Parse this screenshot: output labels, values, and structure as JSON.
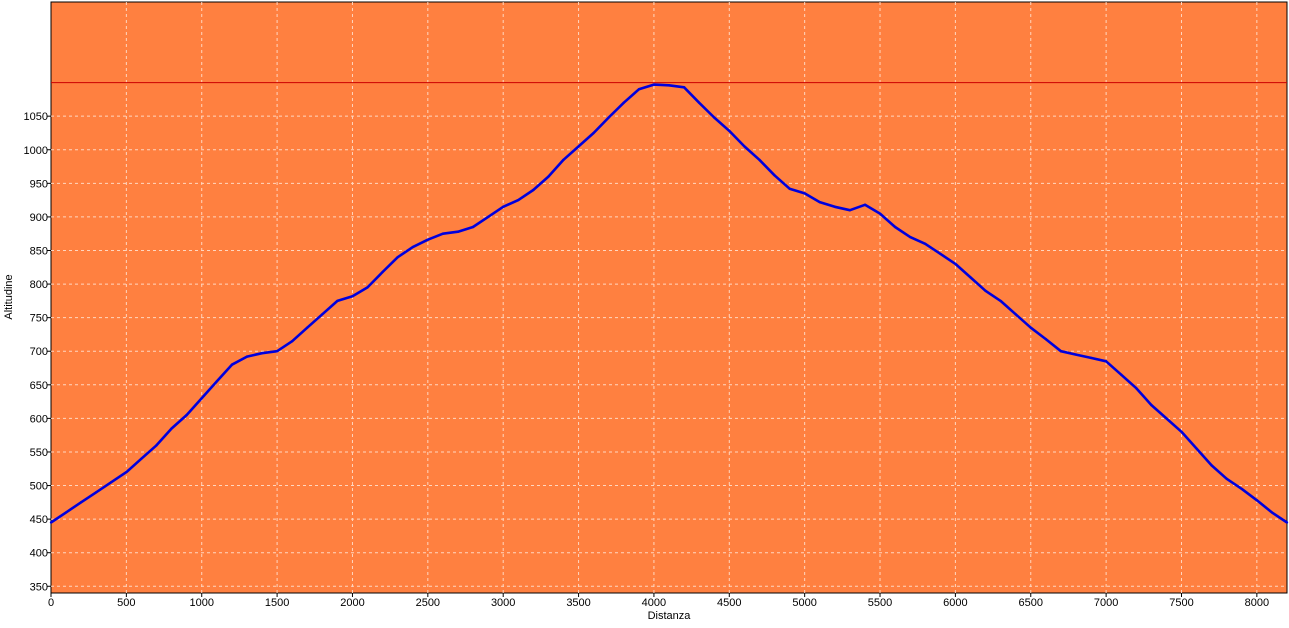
{
  "chart_data": {
    "type": "line",
    "title": "",
    "xlabel": "Distanza",
    "ylabel": "Altitudine",
    "xlim": [
      0,
      8200
    ],
    "ylim": [
      340,
      1220
    ],
    "x_ticks": [
      0,
      500,
      1000,
      1500,
      2000,
      2500,
      3000,
      3500,
      4000,
      4500,
      5000,
      5500,
      6000,
      6500,
      7000,
      7500,
      8000
    ],
    "y_ticks": [
      350,
      400,
      450,
      500,
      550,
      600,
      650,
      700,
      750,
      800,
      850,
      900,
      950,
      1000,
      1050
    ],
    "grid": true,
    "reference_line": 1100,
    "series": [
      {
        "x": [
          0,
          100,
          200,
          300,
          400,
          500,
          600,
          700,
          800,
          900,
          1000,
          1100,
          1200,
          1300,
          1400,
          1500,
          1600,
          1700,
          1800,
          1900,
          2000,
          2100,
          2200,
          2300,
          2400,
          2500,
          2600,
          2700,
          2800,
          2900,
          3000,
          3100,
          3200,
          3300,
          3400,
          3500,
          3600,
          3700,
          3800,
          3900,
          4000,
          4100,
          4200,
          4300,
          4400,
          4500,
          4600,
          4700,
          4800,
          4900,
          5000,
          5100,
          5200,
          5300,
          5400,
          5500,
          5600,
          5700,
          5800,
          5900,
          6000,
          6100,
          6200,
          6300,
          6400,
          6500,
          6600,
          6700,
          6800,
          6900,
          7000,
          7100,
          7200,
          7300,
          7400,
          7500,
          7600,
          7700,
          7800,
          7900,
          8000,
          8100,
          8200
        ],
        "y": [
          445,
          460,
          475,
          490,
          505,
          520,
          540,
          560,
          585,
          605,
          630,
          655,
          680,
          692,
          697,
          700,
          715,
          735,
          755,
          775,
          782,
          795,
          818,
          840,
          855,
          866,
          875,
          878,
          885,
          900,
          915,
          925,
          940,
          960,
          985,
          1005,
          1025,
          1048,
          1070,
          1090,
          1097,
          1096,
          1093,
          1070,
          1048,
          1028,
          1005,
          985,
          962,
          942,
          935,
          922,
          915,
          910,
          918,
          905,
          885,
          870,
          860,
          845,
          830,
          810,
          790,
          775,
          755,
          735,
          718,
          700,
          695,
          690,
          685,
          665,
          645,
          620,
          600,
          580,
          555,
          530,
          510,
          495,
          478,
          460,
          445
        ],
        "color": "#0000dd"
      }
    ],
    "colors": {
      "plot_background": "#ff8040",
      "line": "#0000dd",
      "reference_line": "#cc0000",
      "grid": "#ffd6bf"
    }
  }
}
